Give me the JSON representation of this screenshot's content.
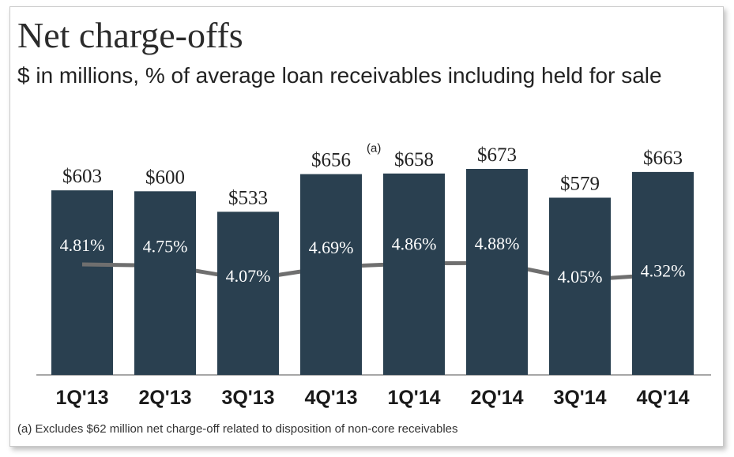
{
  "title": "Net charge-offs",
  "subtitle": "$ in millions, % of average loan receivables including held for sale",
  "footnote": "(a) Excludes $62 million net charge-off related to disposition of non-core receivables",
  "colors": {
    "bar": "#2a4050",
    "line": "#6f6f6f",
    "text": "#222222"
  },
  "chart_data": {
    "type": "bar",
    "categories": [
      "1Q'13",
      "2Q'13",
      "3Q'13",
      "4Q'13",
      "1Q'14",
      "2Q'14",
      "3Q'14",
      "4Q'14"
    ],
    "bar_labels": [
      "$603",
      "$600",
      "$533",
      "$656",
      "$658",
      "$673",
      "$579",
      "$663"
    ],
    "series": [
      {
        "values": [
          603,
          600,
          533,
          656,
          658,
          673,
          579,
          663
        ]
      },
      {
        "values": [
          4.81,
          4.75,
          4.07,
          4.69,
          4.86,
          4.88,
          4.05,
          4.32
        ]
      }
    ],
    "line_labels": [
      "4.81%",
      "4.75%",
      "4.07%",
      "4.69%",
      "4.86%",
      "4.88%",
      "4.05%",
      "4.32%"
    ],
    "annotations": [
      {
        "category": "4Q'13",
        "text": "(a)"
      }
    ],
    "grid": false,
    "legend": "none"
  }
}
